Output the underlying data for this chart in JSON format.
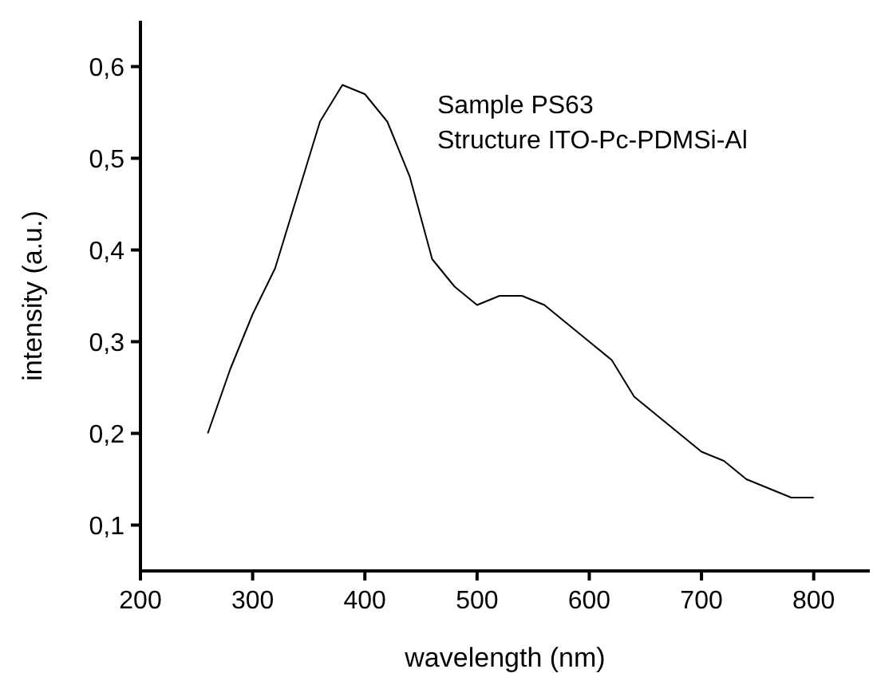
{
  "chart_data": {
    "type": "line",
    "xlabel": "wavelength (nm)",
    "ylabel": "intensity (a.u.)",
    "annotations": [
      "Sample PS63",
      "Structure ITO-Pc-PDMSi-Al"
    ],
    "x": [
      260,
      280,
      300,
      320,
      340,
      360,
      380,
      400,
      420,
      440,
      460,
      480,
      500,
      520,
      540,
      560,
      580,
      600,
      620,
      640,
      660,
      680,
      700,
      720,
      740,
      760,
      780,
      800
    ],
    "series": [
      {
        "color": "#000000",
        "values": [
          0.2,
          0.27,
          0.33,
          0.38,
          0.46,
          0.54,
          0.58,
          0.57,
          0.54,
          0.48,
          0.39,
          0.36,
          0.34,
          0.35,
          0.35,
          0.34,
          0.32,
          0.3,
          0.28,
          0.24,
          0.22,
          0.2,
          0.18,
          0.17,
          0.15,
          0.14,
          0.13,
          0.13
        ]
      }
    ],
    "xlim": [
      200,
      850
    ],
    "xticks": [
      200,
      300,
      400,
      500,
      600,
      700,
      800
    ],
    "ylim": [
      0.05,
      0.65
    ],
    "yticks": [
      {
        "value": 0.1,
        "label": "0,1"
      },
      {
        "value": 0.2,
        "label": "0,2"
      },
      {
        "value": 0.3,
        "label": "0,3"
      },
      {
        "value": 0.4,
        "label": "0,4"
      },
      {
        "value": 0.5,
        "label": "0,5"
      },
      {
        "value": 0.6,
        "label": "0,6"
      }
    ],
    "grid": false,
    "legend": false,
    "marker": "none",
    "line_style": "solid"
  }
}
